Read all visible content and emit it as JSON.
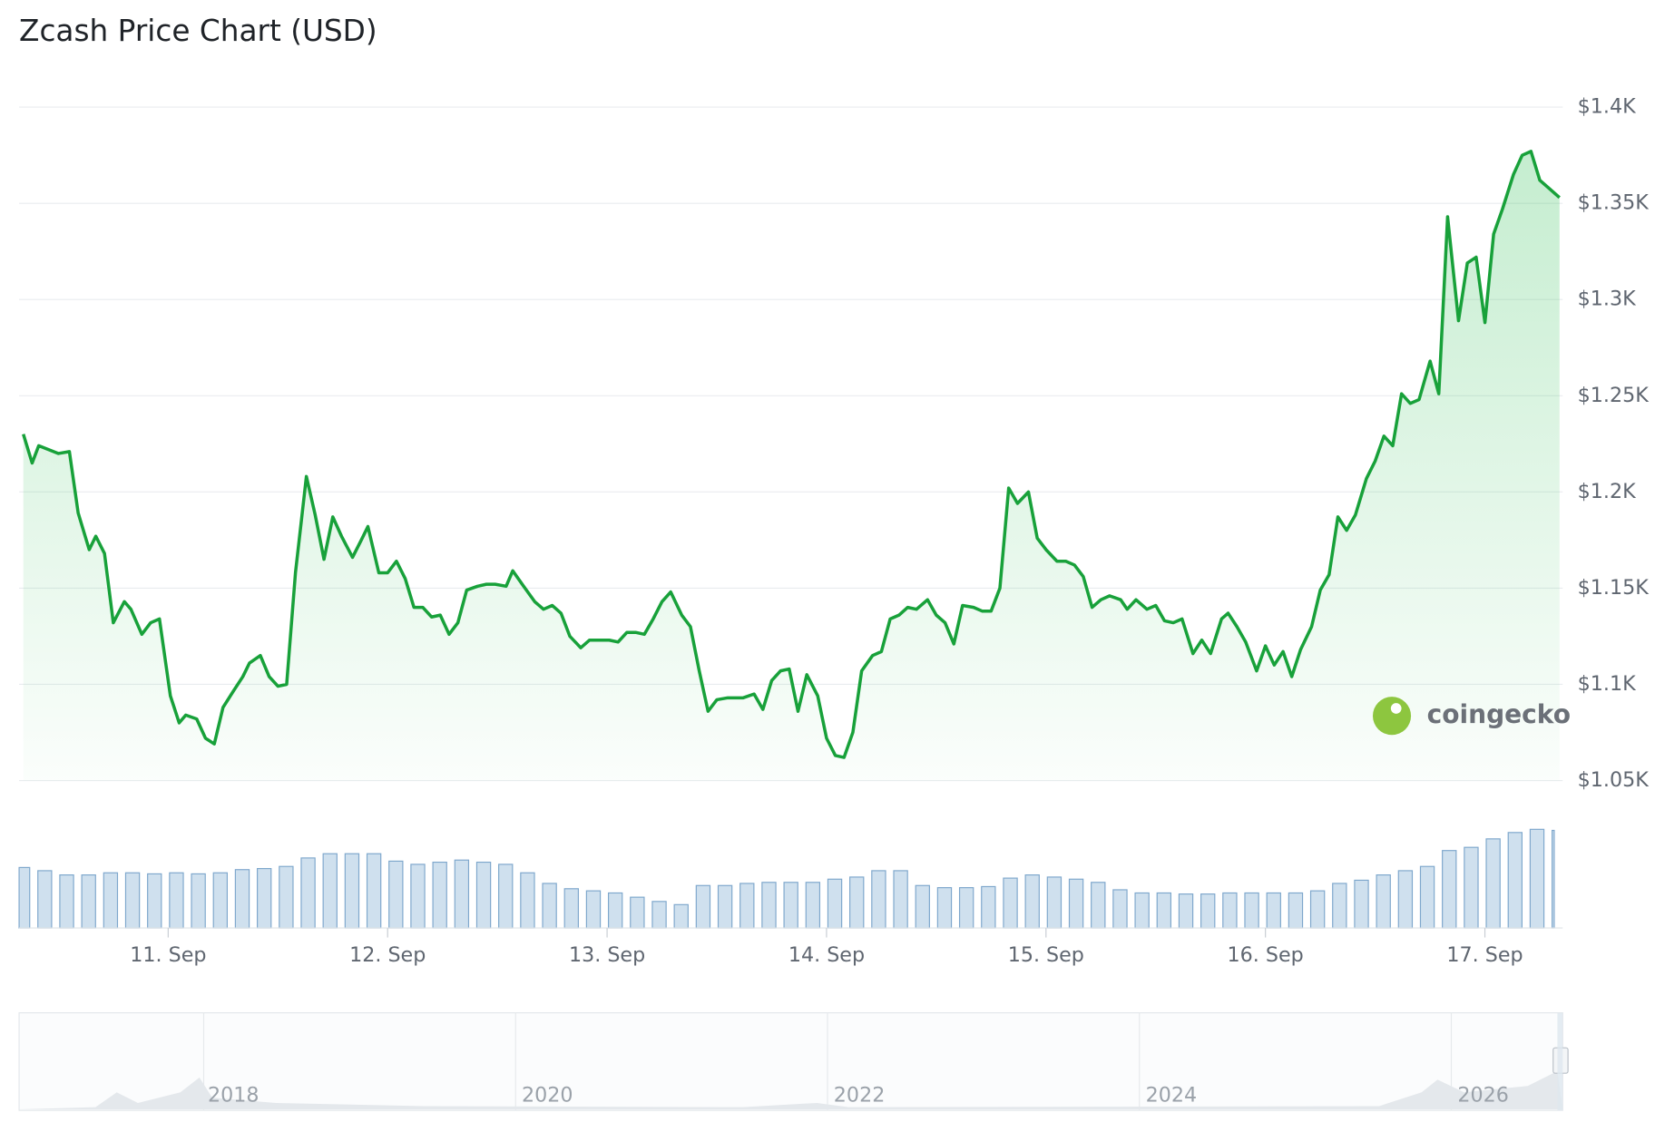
{
  "chart_data": {
    "type": "line",
    "title": "Zcash Price Chart (USD)",
    "color": "#18a13a",
    "x": [
      10.34,
      10.38,
      10.41,
      10.5,
      10.55,
      10.59,
      10.64,
      10.67,
      10.71,
      10.75,
      10.8,
      10.83,
      10.88,
      10.92,
      10.96,
      11.01,
      11.05,
      11.08,
      11.13,
      11.17,
      11.21,
      11.25,
      11.3,
      11.34,
      11.37,
      11.42,
      11.46,
      11.5,
      11.54,
      11.58,
      11.63,
      11.67,
      11.71,
      11.75,
      11.79,
      11.84,
      11.88,
      11.91,
      11.96,
      12.0,
      12.04,
      12.08,
      12.12,
      12.16,
      12.2,
      12.24,
      12.28,
      12.32,
      12.36,
      12.41,
      12.45,
      12.49,
      12.54,
      12.57,
      12.62,
      12.67,
      12.71,
      12.75,
      12.79,
      12.83,
      12.88,
      12.92,
      12.96,
      13.01,
      13.05,
      13.09,
      13.13,
      13.17,
      13.21,
      13.25,
      13.29,
      13.34,
      13.38,
      13.42,
      13.46,
      13.5,
      13.55,
      13.62,
      13.67,
      13.71,
      13.75,
      13.79,
      13.83,
      13.87,
      13.91,
      13.96,
      14.0,
      14.04,
      14.08,
      14.12,
      14.16,
      14.21,
      14.25,
      14.29,
      14.33,
      14.37,
      14.41,
      14.46,
      14.5,
      14.54,
      14.58,
      14.62,
      14.67,
      14.71,
      14.75,
      14.79,
      14.83,
      14.87,
      14.92,
      14.96,
      15.0,
      15.05,
      15.09,
      15.13,
      15.17,
      15.21,
      15.25,
      15.29,
      15.34,
      15.37,
      15.41,
      15.46,
      15.5,
      15.54,
      15.58,
      15.62,
      15.67,
      15.71,
      15.75,
      15.8,
      15.83,
      15.87,
      15.91,
      15.96,
      16.0,
      16.04,
      16.08,
      16.12,
      16.16,
      16.21,
      16.25,
      16.29,
      16.33,
      16.37,
      16.41,
      16.46,
      16.5,
      16.54,
      16.58,
      16.62,
      16.66,
      16.7,
      16.75,
      16.79,
      16.83,
      16.88,
      16.92,
      16.96,
      17.0,
      17.04,
      17.08,
      17.13,
      17.17,
      17.21,
      17.25,
      17.29,
      17.34
    ],
    "values": [
      1230,
      1215,
      1224,
      1220,
      1221,
      1189,
      1170,
      1177,
      1168,
      1132,
      1143,
      1139,
      1126,
      1132,
      1134,
      1094,
      1080,
      1084,
      1082,
      1072,
      1069,
      1088,
      1097,
      1104,
      1111,
      1115,
      1104,
      1099,
      1100,
      1158,
      1208,
      1188,
      1165,
      1187,
      1177,
      1166,
      1175,
      1182,
      1158,
      1158,
      1164,
      1155,
      1140,
      1140,
      1135,
      1136,
      1126,
      1132,
      1149,
      1151,
      1152,
      1152,
      1151,
      1159,
      1151,
      1143,
      1139,
      1141,
      1137,
      1125,
      1119,
      1123,
      1123,
      1123,
      1122,
      1127,
      1127,
      1126,
      1134,
      1143,
      1148,
      1136,
      1130,
      1107,
      1086,
      1092,
      1093,
      1093,
      1095,
      1087,
      1102,
      1107,
      1108,
      1086,
      1105,
      1094,
      1072,
      1063,
      1062,
      1075,
      1107,
      1115,
      1117,
      1134,
      1136,
      1140,
      1139,
      1144,
      1136,
      1132,
      1121,
      1141,
      1140,
      1138,
      1138,
      1150,
      1202,
      1194,
      1200,
      1176,
      1170,
      1164,
      1164,
      1162,
      1156,
      1140,
      1144,
      1146,
      1144,
      1139,
      1144,
      1139,
      1141,
      1133,
      1132,
      1134,
      1116,
      1123,
      1116,
      1134,
      1137,
      1130,
      1122,
      1107,
      1120,
      1110,
      1117,
      1104,
      1118,
      1130,
      1149,
      1157,
      1187,
      1180,
      1188,
      1207,
      1216,
      1229,
      1224,
      1251,
      1246,
      1248,
      1268,
      1251,
      1343,
      1289,
      1319,
      1322,
      1288,
      1334,
      1347,
      1365,
      1375,
      1377,
      1362,
      1358,
      1353
    ],
    "xlim": [
      10.34,
      17.34
    ],
    "xticks": [
      {
        "value": 11,
        "label": "11. Sep"
      },
      {
        "value": 12,
        "label": "12. Sep"
      },
      {
        "value": 13,
        "label": "13. Sep"
      },
      {
        "value": 14,
        "label": "14. Sep"
      },
      {
        "value": 15,
        "label": "15. Sep"
      },
      {
        "value": 16,
        "label": "16. Sep"
      },
      {
        "value": 17,
        "label": "17. Sep"
      }
    ],
    "ylim": [
      1050,
      1400
    ],
    "yticks": [
      {
        "value": 1050,
        "label": "$1.05K"
      },
      {
        "value": 1100,
        "label": "$1.1K"
      },
      {
        "value": 1150,
        "label": "$1.15K"
      },
      {
        "value": 1200,
        "label": "$1.2K"
      },
      {
        "value": 1250,
        "label": "$1.25K"
      },
      {
        "value": 1300,
        "label": "$1.3K"
      },
      {
        "value": 1350,
        "label": "$1.35K"
      },
      {
        "value": 1400,
        "label": "$1.4K"
      }
    ],
    "grid": true,
    "volume": {
      "color": "#cfe0ee",
      "x": [
        10.34,
        10.44,
        10.54,
        10.64,
        10.74,
        10.84,
        10.94,
        11.04,
        11.14,
        11.24,
        11.34,
        11.44,
        11.54,
        11.64,
        11.74,
        11.84,
        11.94,
        12.04,
        12.14,
        12.24,
        12.34,
        12.44,
        12.54,
        12.64,
        12.74,
        12.84,
        12.94,
        13.04,
        13.14,
        13.24,
        13.34,
        13.44,
        13.54,
        13.64,
        13.74,
        13.84,
        13.94,
        14.04,
        14.14,
        14.24,
        14.34,
        14.44,
        14.54,
        14.64,
        14.74,
        14.84,
        14.94,
        15.04,
        15.14,
        15.24,
        15.34,
        15.44,
        15.54,
        15.64,
        15.74,
        15.84,
        15.94,
        16.04,
        16.14,
        16.24,
        16.34,
        16.44,
        16.54,
        16.64,
        16.74,
        16.84,
        16.94,
        17.04,
        17.14,
        17.24,
        17.34
      ],
      "values": [
        57,
        54,
        50,
        50,
        52,
        52,
        51,
        52,
        51,
        52,
        55,
        56,
        58,
        66,
        70,
        70,
        70,
        63,
        60,
        62,
        64,
        62,
        60,
        52,
        42,
        37,
        35,
        33,
        29,
        25,
        22,
        40,
        40,
        42,
        43,
        43,
        43,
        46,
        48,
        54,
        54,
        40,
        38,
        38,
        39,
        47,
        50,
        48,
        46,
        43,
        36,
        33,
        33,
        32,
        32,
        33,
        33,
        33,
        33,
        35,
        42,
        45,
        50,
        54,
        58,
        73,
        76,
        84,
        90,
        93,
        92
      ]
    },
    "navigator": {
      "labels": [
        "2018",
        "2020",
        "2022",
        "2024",
        "2026"
      ]
    },
    "watermark": "coingecko"
  }
}
